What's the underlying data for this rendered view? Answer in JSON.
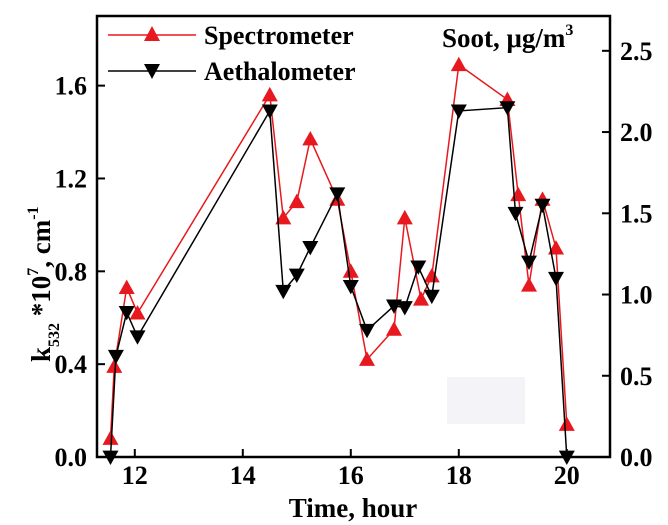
{
  "chart_data": {
    "type": "line",
    "xlabel": "Time, hour",
    "ylabel_left": {
      "main": "k",
      "sub": "532",
      "rest": " *10",
      "sup": "7",
      "unit": ", cm",
      "unit_sup": "-1"
    },
    "ylabel_right": {
      "main": "Soot, μg/m",
      "sup": "3"
    },
    "xlim": [
      11.3,
      20.8
    ],
    "ylim": [
      0,
      1.9
    ],
    "ylim_right": [
      0,
      2.7143
    ],
    "x_ticks": [
      "12",
      "14",
      "16",
      "18",
      "20"
    ],
    "y_ticks": [
      "0.0",
      "0.4",
      "0.8",
      "1.2",
      "1.6"
    ],
    "y_ticks_right": [
      "0.0",
      "0.5",
      "1.0",
      "1.5",
      "2.0",
      "2.5"
    ],
    "series": [
      {
        "name": "Spectrometer",
        "color": "#e8191e",
        "marker": "triangle-up",
        "axis": "left",
        "x": [
          11.55,
          11.62,
          11.85,
          12.05,
          14.5,
          14.75,
          15.0,
          15.25,
          15.75,
          16.0,
          16.3,
          16.8,
          17.0,
          17.3,
          17.5,
          18.0,
          18.9,
          19.1,
          19.3,
          19.55,
          19.8,
          20.0
        ],
        "values": [
          0.08,
          0.39,
          0.73,
          0.62,
          1.56,
          1.03,
          1.1,
          1.37,
          1.11,
          0.8,
          0.42,
          0.55,
          1.03,
          0.68,
          0.78,
          1.69,
          1.54,
          1.13,
          0.74,
          1.11,
          0.9,
          0.14
        ]
      },
      {
        "name": "Aethalometer",
        "color": "#000000",
        "marker": "triangle-down",
        "axis": "right",
        "x": [
          11.55,
          11.65,
          11.85,
          12.05,
          14.5,
          14.75,
          15.0,
          15.25,
          15.75,
          16.0,
          16.3,
          16.8,
          17.0,
          17.25,
          17.5,
          18.0,
          18.9,
          19.05,
          19.3,
          19.55,
          19.8,
          20.0
        ],
        "values": [
          0.0,
          0.62,
          0.89,
          0.74,
          2.13,
          1.02,
          1.12,
          1.29,
          1.62,
          1.05,
          0.78,
          0.93,
          0.92,
          1.17,
          0.99,
          2.13,
          2.15,
          1.5,
          1.2,
          1.55,
          1.1,
          0.0
        ]
      }
    ],
    "legend_position": "top-left",
    "grid": false
  }
}
